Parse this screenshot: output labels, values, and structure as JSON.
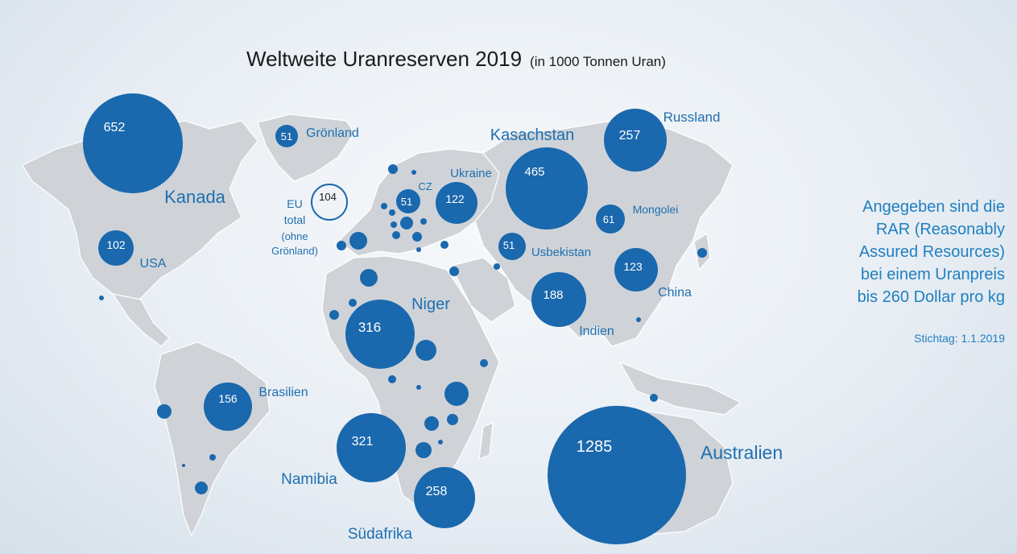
{
  "title": "Weltweite Uranreserven 2019",
  "title_unit": "(in 1000 Tonnen Uran)",
  "note": "Angegeben sind die RAR (Reasonably Assured Resources) bei einem Uranpreis bis 260 Dollar pro kg",
  "note_lines": [
    "Angegeben sind die",
    "RAR (Reasonably",
    "Assured Resources)",
    "bei einem Uranpreis",
    "bis 260 Dollar pro kg"
  ],
  "date": "Stichtag: 1.1.2019",
  "colors": {
    "bubble": "#1a68ad",
    "label": "#1f6fb0",
    "land": "#cfd3d8"
  },
  "eu": {
    "value": "104",
    "label_lines": [
      "EU",
      "total",
      "(ohne",
      "Grönland)"
    ]
  },
  "countries": [
    {
      "name": "Kanada",
      "value": "652"
    },
    {
      "name": "Grönland",
      "value": "51"
    },
    {
      "name": "USA",
      "value": "102"
    },
    {
      "name": "Brasilien",
      "value": "156"
    },
    {
      "name": "CZ",
      "value": "51"
    },
    {
      "name": "Ukraine",
      "value": "122"
    },
    {
      "name": "Kasachstan",
      "value": "465"
    },
    {
      "name": "Russland",
      "value": "257"
    },
    {
      "name": "Mongolei",
      "value": "61"
    },
    {
      "name": "Usbekistan",
      "value": "51"
    },
    {
      "name": "China",
      "value": "123"
    },
    {
      "name": "Indien",
      "value": "188"
    },
    {
      "name": "Niger",
      "value": "316"
    },
    {
      "name": "Namibia",
      "value": "321"
    },
    {
      "name": "Südafrika",
      "value": "258"
    },
    {
      "name": "Australien",
      "value": "1285"
    }
  ]
}
